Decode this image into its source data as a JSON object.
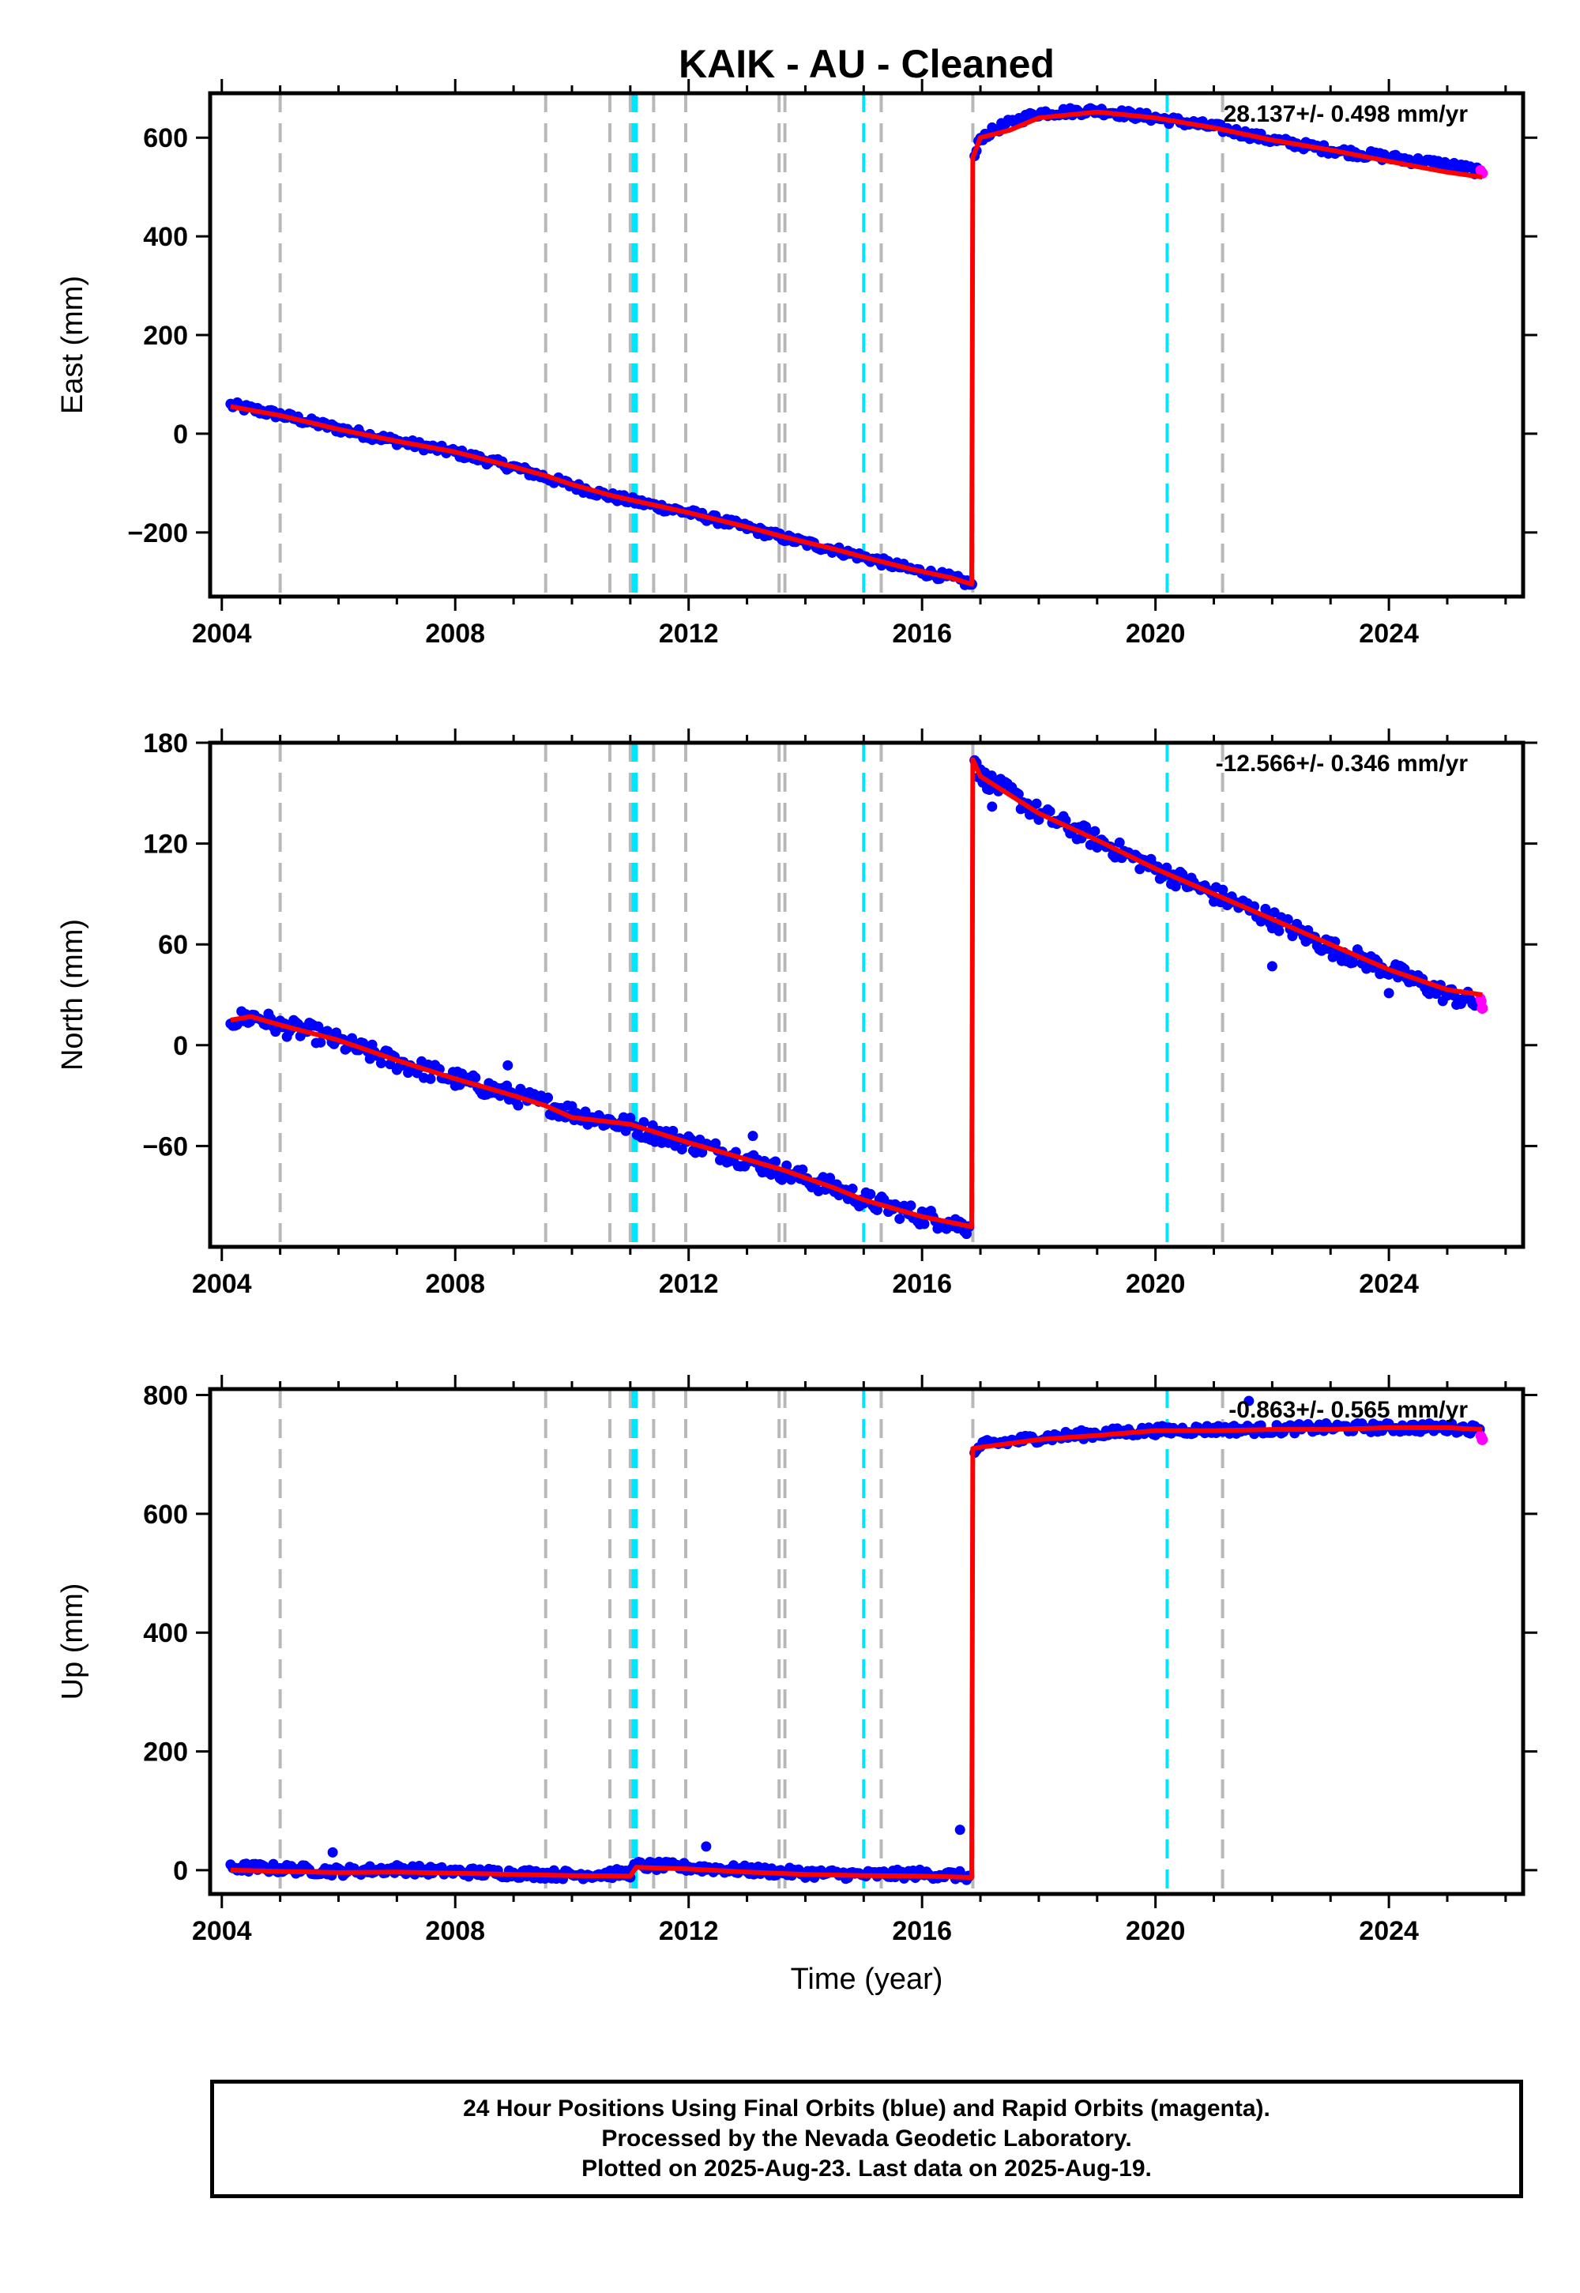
{
  "chart_data": [
    {
      "type": "scatter",
      "title": "KAIK  - AU - Cleaned",
      "ylabel": "East (mm)",
      "xlabel": "",
      "xlim": [
        2003.8,
        2026.3
      ],
      "ylim": [
        -330,
        690
      ],
      "xticks": [
        2004,
        2008,
        2012,
        2016,
        2020,
        2024
      ],
      "yticks": [
        -200,
        0,
        200,
        400,
        600
      ],
      "ytick_labels": [
        "−200",
        "0",
        "200",
        "400",
        "600"
      ],
      "rate": "28.137+/- 0.498 mm/yr",
      "grid": false,
      "series": [
        {
          "color": "#0000ff",
          "points": [
            [
              2004.15,
              58
            ],
            [
              2005.0,
              38
            ],
            [
              2006.0,
              10
            ],
            [
              2007.0,
              -15
            ],
            [
              2008.0,
              -38
            ],
            [
              2009.0,
              -68
            ],
            [
              2010.0,
              -105
            ],
            [
              2010.7,
              -128
            ],
            [
              2011.5,
              -148
            ],
            [
              2012.0,
              -160
            ],
            [
              2013.0,
              -190
            ],
            [
              2013.6,
              -210
            ],
            [
              2014.5,
              -235
            ],
            [
              2015.0,
              -250
            ],
            [
              2015.8,
              -275
            ],
            [
              2016.5,
              -292
            ],
            [
              2016.85,
              -305
            ]
          ]
        },
        {
          "color": "#0000ff",
          "points": [
            [
              2016.9,
              560
            ],
            [
              2017.0,
              600
            ],
            [
              2017.4,
              625
            ],
            [
              2018.0,
              650
            ],
            [
              2019.0,
              655
            ],
            [
              2020.0,
              640
            ],
            [
              2021.0,
              622
            ],
            [
              2022.0,
              595
            ],
            [
              2023.0,
              575
            ],
            [
              2024.0,
              560
            ],
            [
              2025.0,
              545
            ],
            [
              2025.55,
              532
            ]
          ]
        },
        {
          "color": "#ff00ff",
          "points": [
            [
              2025.57,
              530
            ],
            [
              2025.6,
              528
            ]
          ]
        }
      ],
      "model": {
        "color": "#ff0000",
        "points": [
          [
            2004.15,
            55
          ],
          [
            2005.0,
            37
          ],
          [
            2006.0,
            9
          ],
          [
            2007.0,
            -15
          ],
          [
            2008.0,
            -37
          ],
          [
            2009.0,
            -67
          ],
          [
            2009.55,
            -85
          ],
          [
            2010.0,
            -103
          ],
          [
            2010.7,
            -126
          ],
          [
            2011.0,
            -134
          ],
          [
            2011.5,
            -147
          ],
          [
            2012.0,
            -160
          ],
          [
            2013.0,
            -189
          ],
          [
            2013.6,
            -208
          ],
          [
            2014.5,
            -234
          ],
          [
            2015.0,
            -250
          ],
          [
            2015.8,
            -274
          ],
          [
            2016.5,
            -292
          ],
          [
            2016.85,
            -305
          ],
          [
            2016.87,
            560
          ],
          [
            2017.0,
            600
          ],
          [
            2017.5,
            615
          ],
          [
            2018.0,
            640
          ],
          [
            2019.0,
            652
          ],
          [
            2020.0,
            640
          ],
          [
            2021.0,
            620
          ],
          [
            2022.0,
            595
          ],
          [
            2023.0,
            575
          ],
          [
            2024.0,
            552
          ],
          [
            2025.0,
            530
          ],
          [
            2025.6,
            520
          ]
        ]
      },
      "vlines_gray": [
        2005.0,
        2009.55,
        2010.65,
        2011.0,
        2011.4,
        2011.95,
        2013.55,
        2013.65,
        2015.3,
        2016.87,
        2021.15
      ],
      "vlines_cyan": [
        2011.05,
        2011.1,
        2015.0,
        2020.2
      ]
    },
    {
      "type": "scatter",
      "ylabel": "North (mm)",
      "xlabel": "",
      "xlim": [
        2003.8,
        2026.3
      ],
      "ylim": [
        -120,
        180
      ],
      "xticks": [
        2004,
        2008,
        2012,
        2016,
        2020,
        2024
      ],
      "yticks": [
        -60,
        0,
        60,
        120,
        180
      ],
      "ytick_labels": [
        "−60",
        "0",
        "60",
        "120",
        "180"
      ],
      "rate": "-12.566+/- 0.346 mm/yr",
      "grid": false,
      "series": [
        {
          "color": "#0000ff",
          "points": [
            [
              2004.15,
              15
            ],
            [
              2004.6,
              17
            ],
            [
              2005.0,
              11
            ],
            [
              2005.5,
              8
            ],
            [
              2006.0,
              2
            ],
            [
              2007.0,
              -10
            ],
            [
              2008.0,
              -20
            ],
            [
              2009.0,
              -30
            ],
            [
              2009.55,
              -35
            ],
            [
              2010.0,
              -40
            ],
            [
              2011.0,
              -48
            ],
            [
              2012.0,
              -58
            ],
            [
              2013.0,
              -68
            ],
            [
              2013.6,
              -75
            ],
            [
              2014.5,
              -85
            ],
            [
              2015.0,
              -92
            ],
            [
              2016.0,
              -102
            ],
            [
              2016.8,
              -108
            ]
          ]
        },
        {
          "color": "#0000ff",
          "points": [
            [
              2016.9,
              172
            ],
            [
              2017.0,
              160
            ],
            [
              2017.5,
              150
            ],
            [
              2018.0,
              138
            ],
            [
              2019.0,
              122
            ],
            [
              2020.0,
              105
            ],
            [
              2021.0,
              90
            ],
            [
              2022.0,
              75
            ],
            [
              2023.0,
              58
            ],
            [
              2024.0,
              45
            ],
            [
              2025.0,
              30
            ],
            [
              2025.55,
              25
            ]
          ]
        },
        {
          "color": "#ff00ff",
          "points": [
            [
              2025.57,
              28
            ],
            [
              2025.6,
              22
            ]
          ]
        }
      ],
      "outliers": [
        [
          2008.9,
          -12
        ],
        [
          2013.1,
          -54
        ],
        [
          2017.2,
          142
        ],
        [
          2022.0,
          47
        ],
        [
          2024.0,
          31
        ]
      ],
      "model": {
        "color": "#ff0000",
        "points": [
          [
            2004.15,
            15
          ],
          [
            2004.5,
            17
          ],
          [
            2005.0,
            12
          ],
          [
            2006.0,
            3
          ],
          [
            2007.0,
            -9
          ],
          [
            2008.0,
            -20
          ],
          [
            2009.0,
            -30
          ],
          [
            2009.55,
            -36
          ],
          [
            2010.0,
            -43
          ],
          [
            2011.0,
            -47
          ],
          [
            2012.0,
            -58
          ],
          [
            2013.0,
            -68
          ],
          [
            2013.6,
            -74
          ],
          [
            2014.5,
            -85
          ],
          [
            2015.0,
            -92
          ],
          [
            2016.0,
            -102
          ],
          [
            2016.85,
            -108
          ],
          [
            2016.87,
            170
          ],
          [
            2017.0,
            160
          ],
          [
            2018.0,
            138
          ],
          [
            2019.0,
            122
          ],
          [
            2020.0,
            105
          ],
          [
            2021.0,
            90
          ],
          [
            2022.0,
            75
          ],
          [
            2023.0,
            60
          ],
          [
            2024.0,
            45
          ],
          [
            2025.0,
            33
          ],
          [
            2025.6,
            30
          ]
        ]
      },
      "vlines_gray": [
        2005.0,
        2009.55,
        2010.65,
        2011.0,
        2011.4,
        2011.95,
        2013.55,
        2013.65,
        2015.3,
        2016.87,
        2021.15
      ],
      "vlines_cyan": [
        2011.05,
        2011.1,
        2015.0,
        2020.2
      ]
    },
    {
      "type": "scatter",
      "ylabel": "Up (mm)",
      "xlabel": "Time (year)",
      "xlim": [
        2003.8,
        2026.3
      ],
      "ylim": [
        -40,
        810
      ],
      "xticks": [
        2004,
        2008,
        2012,
        2016,
        2020,
        2024
      ],
      "yticks": [
        0,
        200,
        400,
        600,
        800
      ],
      "ytick_labels": [
        "0",
        "200",
        "400",
        "600",
        "800"
      ],
      "rate": "-0.863+/- 0.565 mm/yr",
      "grid": false,
      "series": [
        {
          "color": "#0000ff",
          "points": [
            [
              2004.15,
              5
            ],
            [
              2005.0,
              3
            ],
            [
              2006.0,
              -2
            ],
            [
              2007.0,
              2
            ],
            [
              2008.0,
              -3
            ],
            [
              2009.0,
              -5
            ],
            [
              2010.0,
              -8
            ],
            [
              2011.0,
              -5
            ],
            [
              2011.1,
              8
            ],
            [
              2012.0,
              5
            ],
            [
              2013.0,
              0
            ],
            [
              2014.0,
              -5
            ],
            [
              2015.0,
              -8
            ],
            [
              2016.0,
              -6
            ],
            [
              2016.8,
              -10
            ]
          ]
        },
        {
          "color": "#0000ff",
          "points": [
            [
              2016.9,
              700
            ],
            [
              2017.0,
              715
            ],
            [
              2018.0,
              728
            ],
            [
              2019.0,
              735
            ],
            [
              2020.0,
              740
            ],
            [
              2021.0,
              742
            ],
            [
              2022.0,
              742
            ],
            [
              2023.0,
              745
            ],
            [
              2024.0,
              745
            ],
            [
              2025.0,
              745
            ],
            [
              2025.55,
              742
            ]
          ]
        },
        {
          "color": "#ff00ff",
          "points": [
            [
              2025.57,
              735
            ],
            [
              2025.6,
              725
            ]
          ]
        }
      ],
      "outliers": [
        [
          2005.9,
          30
        ],
        [
          2012.3,
          40
        ],
        [
          2016.65,
          68
        ],
        [
          2021.6,
          790
        ]
      ],
      "model": {
        "color": "#ff0000",
        "points": [
          [
            2004.15,
            0
          ],
          [
            2005.0,
            -2
          ],
          [
            2006.0,
            -4
          ],
          [
            2007.0,
            -3
          ],
          [
            2008.0,
            -5
          ],
          [
            2009.0,
            -7
          ],
          [
            2010.0,
            -9
          ],
          [
            2011.0,
            -10
          ],
          [
            2011.1,
            5
          ],
          [
            2012.0,
            2
          ],
          [
            2013.0,
            -3
          ],
          [
            2014.0,
            -7
          ],
          [
            2015.0,
            -9
          ],
          [
            2016.0,
            -10
          ],
          [
            2016.85,
            -12
          ],
          [
            2016.87,
            710
          ],
          [
            2017.0,
            712
          ],
          [
            2018.0,
            725
          ],
          [
            2019.0,
            732
          ],
          [
            2020.0,
            740
          ],
          [
            2021.0,
            740
          ],
          [
            2022.0,
            742
          ],
          [
            2023.0,
            742
          ],
          [
            2024.0,
            745
          ],
          [
            2025.0,
            745
          ],
          [
            2025.6,
            742
          ]
        ]
      },
      "vlines_gray": [
        2005.0,
        2009.55,
        2010.65,
        2011.0,
        2011.4,
        2011.95,
        2013.55,
        2013.65,
        2015.3,
        2016.87,
        2021.15
      ],
      "vlines_cyan": [
        2011.05,
        2011.1,
        2015.0,
        2020.2
      ]
    }
  ],
  "footer": {
    "line1": "24 Hour Positions Using Final Orbits (blue) and Rapid Orbits (magenta).",
    "line2": "Processed by the Nevada Geodetic Laboratory.",
    "line3": "Plotted on 2025-Aug-23. Last data on 2025-Aug-19."
  }
}
